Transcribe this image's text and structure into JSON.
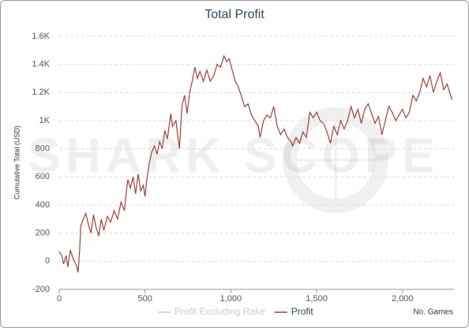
{
  "chart_data": {
    "type": "line",
    "title": "Total Profit",
    "watermark": "SHARK SCOPE",
    "y_label": "Cumulative Total (USD)",
    "x_label": "No. Games",
    "xlim": [
      0,
      2300
    ],
    "xticks": [
      0,
      500,
      {
        "value": 1000,
        "label": "1,000"
      },
      {
        "value": 1500,
        "label": "1,500"
      },
      {
        "value": 2000,
        "label": "2,000"
      }
    ],
    "ylim": [
      -200,
      1600
    ],
    "yticks": [
      -200,
      0,
      200,
      400,
      600,
      800,
      {
        "value": 1000,
        "label": "1K"
      },
      {
        "value": 1200,
        "label": "1.2K"
      },
      {
        "value": 1400,
        "label": "1.4K"
      },
      {
        "value": 1600,
        "label": "1.6K"
      }
    ],
    "grid": true,
    "x": [
      0,
      15,
      25,
      40,
      50,
      65,
      80,
      100,
      110,
      120,
      125,
      140,
      155,
      170,
      185,
      200,
      215,
      230,
      245,
      260,
      280,
      300,
      320,
      340,
      360,
      380,
      390,
      400,
      415,
      430,
      445,
      460,
      475,
      490,
      500,
      510,
      525,
      540,
      555,
      570,
      585,
      600,
      615,
      630,
      650,
      660,
      680,
      700,
      715,
      730,
      745,
      760,
      775,
      790,
      805,
      820,
      840,
      860,
      880,
      900,
      920,
      940,
      960,
      975,
      990,
      1010,
      1025,
      1040,
      1060,
      1080,
      1100,
      1120,
      1140,
      1160,
      1170,
      1190,
      1210,
      1230,
      1250,
      1270,
      1290,
      1310,
      1330,
      1350,
      1360,
      1380,
      1400,
      1420,
      1440,
      1460,
      1480,
      1500,
      1520,
      1540,
      1560,
      1580,
      1600,
      1620,
      1640,
      1660,
      1680,
      1700,
      1720,
      1740,
      1760,
      1780,
      1800,
      1820,
      1840,
      1860,
      1880,
      1900,
      1920,
      1940,
      1960,
      1980,
      2000,
      2020,
      2040,
      2060,
      2080,
      2100,
      2120,
      2140,
      2160,
      2180,
      2200,
      2220,
      2240,
      2260,
      2280,
      2290
    ],
    "series": [
      {
        "name": "Profit Excluding Rake",
        "color": "#cccccc",
        "hidden": true
      },
      {
        "name": "Profit",
        "color": "#a0403c",
        "values": [
          70,
          40,
          -20,
          40,
          -40,
          80,
          20,
          -30,
          -80,
          100,
          250,
          300,
          340,
          260,
          200,
          330,
          240,
          180,
          300,
          220,
          320,
          280,
          360,
          300,
          420,
          360,
          480,
          580,
          520,
          600,
          480,
          620,
          500,
          540,
          460,
          580,
          700,
          780,
          820,
          760,
          850,
          800,
          930,
          870,
          1050,
          960,
          1000,
          800,
          1100,
          1180,
          1050,
          1200,
          1280,
          1380,
          1300,
          1350,
          1280,
          1360,
          1280,
          1320,
          1400,
          1380,
          1460,
          1420,
          1440,
          1350,
          1280,
          1250,
          1180,
          1100,
          1120,
          1040,
          1000,
          960,
          880,
          1000,
          1040,
          1020,
          1100,
          960,
          900,
          940,
          880,
          850,
          820,
          880,
          840,
          920,
          880,
          1060,
          1020,
          1060,
          1000,
          980,
          920,
          840,
          960,
          900,
          1000,
          940,
          1000,
          1100,
          1020,
          1080,
          980,
          1080,
          1120,
          1050,
          980,
          1030,
          900,
          1000,
          1100,
          1060,
          1000,
          1040,
          1080,
          1020,
          1060,
          1180,
          1140,
          1200,
          1300,
          1240,
          1320,
          1200,
          1280,
          1340,
          1220,
          1260,
          1180,
          1150
        ]
      }
    ]
  }
}
